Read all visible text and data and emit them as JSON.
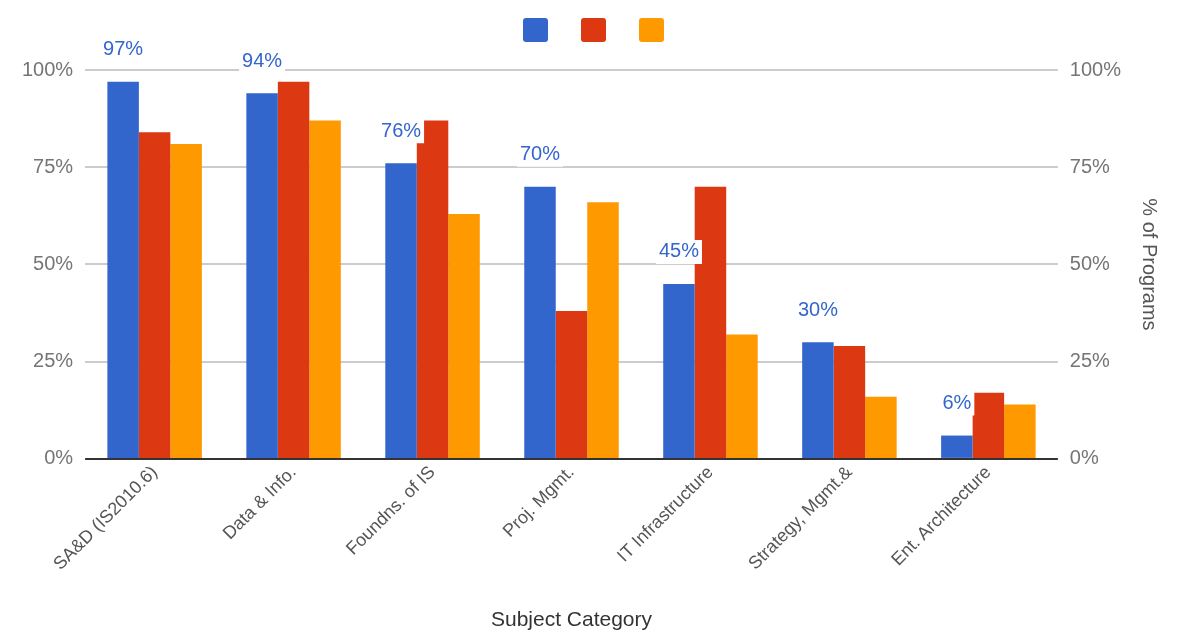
{
  "chart_data": {
    "type": "bar",
    "xlabel": "Subject Category",
    "y2label": "% of Programs",
    "categories": [
      "SA&D (IS2010.6)",
      "Data & Info.",
      "Foundns. of IS",
      "Proj. Mgmt.",
      "IT Infrastructure",
      "Strategy, Mgmt.&",
      "Ent. Architecture"
    ],
    "series": [
      {
        "color": "#3366cc",
        "values": [
          97,
          94,
          76,
          70,
          45,
          30,
          6
        ],
        "value_labels": [
          "97%",
          "94%",
          "76%",
          "70%",
          "45%",
          "30%",
          "6%"
        ]
      },
      {
        "color": "#dc3912",
        "values": [
          84,
          97,
          87,
          38,
          70,
          29,
          17
        ]
      },
      {
        "color": "#ff9900",
        "values": [
          81,
          87,
          63,
          66,
          32,
          16,
          14
        ]
      }
    ],
    "ylim": [
      0,
      100
    ],
    "yticks": [
      {
        "value": 0,
        "label": "0%"
      },
      {
        "value": 25,
        "label": "25%"
      },
      {
        "value": 50,
        "label": "50%"
      },
      {
        "value": 75,
        "label": "75%"
      },
      {
        "value": 100,
        "label": "100%"
      }
    ],
    "y2lim": [
      0,
      100
    ],
    "y2ticks": [
      {
        "value": 0,
        "label": "0%"
      },
      {
        "value": 25,
        "label": "25%"
      },
      {
        "value": 50,
        "label": "50%"
      },
      {
        "value": 75,
        "label": "75%"
      },
      {
        "value": 100,
        "label": "100%"
      }
    ],
    "grid": "y"
  }
}
